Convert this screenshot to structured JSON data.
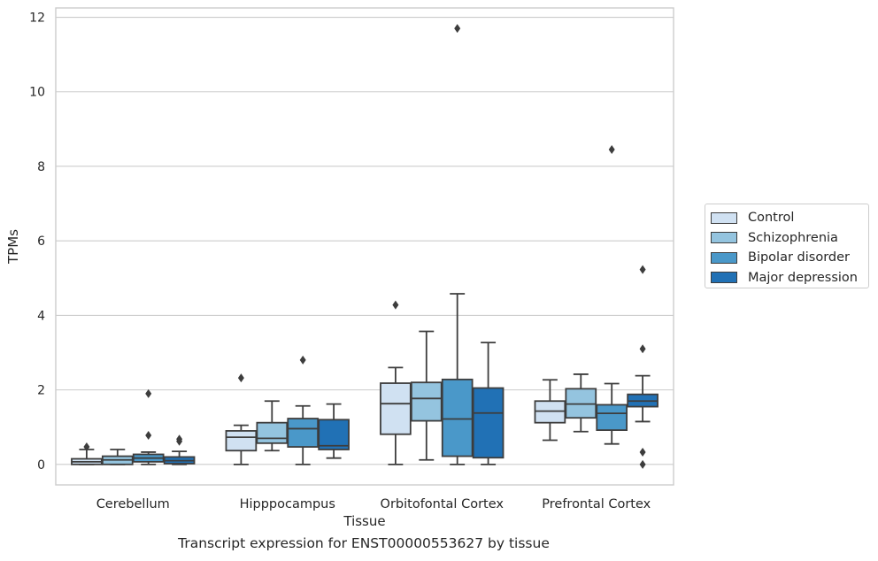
{
  "chart_data": {
    "type": "box",
    "caption": "Transcript expression for ENST00000553627 by tissue",
    "xlabel": "Tissue",
    "ylabel": "TPMs",
    "ylim": [
      -0.55,
      12.25
    ],
    "yticks": [
      0,
      2,
      4,
      6,
      8,
      10,
      12
    ],
    "grid": true,
    "legend_position": "right",
    "categories": [
      "Cerebellum",
      "Hipppocampus",
      "Orbitofontal Cortex",
      "Prefrontal Cortex"
    ],
    "series": [
      {
        "name": "Control",
        "color": "#d0e1f2",
        "boxes": [
          {
            "whislo": 0.0,
            "q1": 0.0,
            "med": 0.07,
            "q3": 0.15,
            "whishi": 0.4,
            "fliers": [
              0.47
            ]
          },
          {
            "whislo": 0.0,
            "q1": 0.37,
            "med": 0.73,
            "q3": 0.9,
            "whishi": 1.05,
            "fliers": [
              2.32
            ]
          },
          {
            "whislo": 0.0,
            "q1": 0.81,
            "med": 1.63,
            "q3": 2.18,
            "whishi": 2.6,
            "fliers": [
              4.28
            ]
          },
          {
            "whislo": 0.65,
            "q1": 1.12,
            "med": 1.43,
            "q3": 1.7,
            "whishi": 2.27,
            "fliers": []
          }
        ]
      },
      {
        "name": "Schizophrenia",
        "color": "#94c4df",
        "boxes": [
          {
            "whislo": 0.0,
            "q1": 0.0,
            "med": 0.12,
            "q3": 0.22,
            "whishi": 0.4,
            "fliers": []
          },
          {
            "whislo": 0.37,
            "q1": 0.57,
            "med": 0.7,
            "q3": 1.12,
            "whishi": 1.7,
            "fliers": []
          },
          {
            "whislo": 0.12,
            "q1": 1.17,
            "med": 1.77,
            "q3": 2.2,
            "whishi": 3.57,
            "fliers": []
          },
          {
            "whislo": 0.88,
            "q1": 1.25,
            "med": 1.62,
            "q3": 2.03,
            "whishi": 2.42,
            "fliers": []
          }
        ]
      },
      {
        "name": "Bipolar disorder",
        "color": "#4a98c9",
        "boxes": [
          {
            "whislo": 0.0,
            "q1": 0.07,
            "med": 0.17,
            "q3": 0.27,
            "whishi": 0.33,
            "fliers": [
              0.78,
              1.9
            ]
          },
          {
            "whislo": 0.0,
            "q1": 0.47,
            "med": 0.96,
            "q3": 1.23,
            "whishi": 1.57,
            "fliers": [
              2.8
            ]
          },
          {
            "whislo": 0.0,
            "q1": 0.22,
            "med": 1.22,
            "q3": 2.28,
            "whishi": 4.58,
            "fliers": [
              11.7
            ]
          },
          {
            "whislo": 0.55,
            "q1": 0.92,
            "med": 1.37,
            "q3": 1.6,
            "whishi": 2.17,
            "fliers": [
              8.45
            ]
          }
        ]
      },
      {
        "name": "Major depression",
        "color": "#2171b5",
        "boxes": [
          {
            "whislo": 0.0,
            "q1": 0.02,
            "med": 0.1,
            "q3": 0.2,
            "whishi": 0.35,
            "fliers": [
              0.62,
              0.68
            ]
          },
          {
            "whislo": 0.17,
            "q1": 0.4,
            "med": 0.5,
            "q3": 1.2,
            "whishi": 1.62,
            "fliers": []
          },
          {
            "whislo": 0.0,
            "q1": 0.18,
            "med": 1.38,
            "q3": 2.05,
            "whishi": 3.27,
            "fliers": []
          },
          {
            "whislo": 1.15,
            "q1": 1.55,
            "med": 1.7,
            "q3": 1.88,
            "whishi": 2.38,
            "fliers": [
              0.0,
              0.33,
              3.1,
              5.23
            ]
          }
        ]
      }
    ]
  }
}
